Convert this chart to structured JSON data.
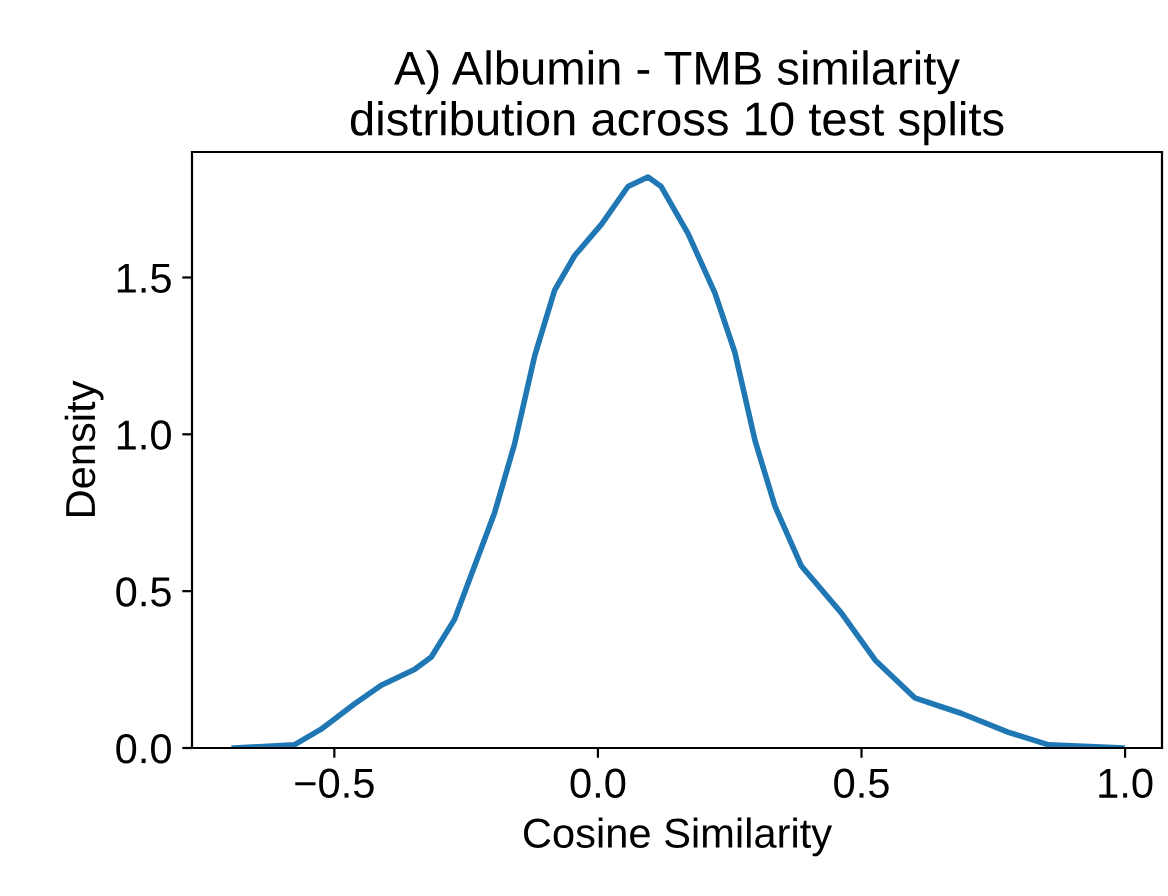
{
  "chart_data": {
    "type": "line",
    "title": "A) Albumin - TMB similarity\ndistribution across 10 test splits",
    "xlabel": "Cosine Similarity",
    "ylabel": "Density",
    "series": [
      {
        "color": "#1f77b4",
        "x": [
          -0.69,
          -0.576,
          -0.525,
          -0.462,
          -0.411,
          -0.348,
          -0.316,
          -0.272,
          -0.234,
          -0.196,
          -0.158,
          -0.12,
          -0.082,
          -0.044,
          0.007,
          0.057,
          0.095,
          0.12,
          0.171,
          0.222,
          0.26,
          0.298,
          0.336,
          0.386,
          0.462,
          0.526,
          0.601,
          0.69,
          0.779,
          0.855,
          0.994
        ],
        "values": [
          0.0,
          0.01,
          0.06,
          0.14,
          0.2,
          0.25,
          0.29,
          0.41,
          0.58,
          0.75,
          0.97,
          1.25,
          1.46,
          1.57,
          1.67,
          1.79,
          1.82,
          1.79,
          1.64,
          1.45,
          1.26,
          0.98,
          0.77,
          0.58,
          0.43,
          0.28,
          0.16,
          0.11,
          0.05,
          0.01,
          0.0
        ]
      }
    ],
    "xlim": [
      -0.77,
      1.07
    ],
    "ylim": [
      0,
      1.9
    ],
    "xticks": [
      {
        "value": -0.5,
        "label": "−0.5"
      },
      {
        "value": 0,
        "label": "0.0"
      },
      0.5,
      {
        "value": 1,
        "label": "1.0"
      }
    ],
    "yticks": [
      {
        "value": 0,
        "label": "0.0"
      },
      0.5,
      {
        "value": 1,
        "label": "1.0"
      },
      1.5
    ],
    "grid": false,
    "legend": false
  }
}
